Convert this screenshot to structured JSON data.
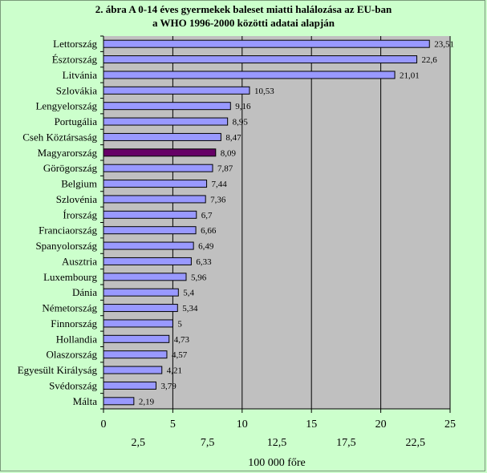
{
  "chart_data": {
    "type": "bar",
    "orientation": "horizontal",
    "title_line1": "2. ábra  A 0-14 éves gyermekek baleset miatti halálozása  az EU-ban",
    "title_line2": "a WHO 1996-2000 közötti adatai alapján",
    "xlabel": "100 000 főre",
    "categories": [
      "Lettország",
      "Észtország",
      "Litvánia",
      "Szlovákia",
      "Lengyelország",
      "Portugália",
      "Cseh Köztársaság",
      "Magyarország",
      "Görögország",
      "Belgium",
      "Szlovénia",
      "Írország",
      "Franciaország",
      "Spanyolország",
      "Ausztria",
      "Luxembourg",
      "Dánia",
      "Németország",
      "Finnország",
      "Hollandia",
      "Olaszország",
      "Egyesült Királyság",
      "Svédország",
      "Málta"
    ],
    "values": [
      23.51,
      22.6,
      21.01,
      10.53,
      9.16,
      8.95,
      8.47,
      8.09,
      7.87,
      7.44,
      7.36,
      6.7,
      6.66,
      6.49,
      6.33,
      5.96,
      5.4,
      5.34,
      5,
      4.73,
      4.57,
      4.21,
      3.79,
      2.19
    ],
    "value_labels": [
      "23,51",
      "22,6",
      "21,01",
      "10,53",
      "9,16",
      "8,95",
      "8,47",
      "8,09",
      "7,87",
      "7,44",
      "7,36",
      "6,7",
      "6,66",
      "6,49",
      "6,33",
      "5,96",
      "5,4",
      "5,34",
      "5",
      "4,73",
      "4,57",
      "4,21",
      "3,79",
      "2,19"
    ],
    "highlight": "Magyarország",
    "xlim": [
      0,
      25
    ],
    "major_ticks": [
      0,
      5,
      10,
      15,
      20,
      25
    ],
    "minor_ticks": [
      "2,5",
      "7,5",
      "12,5",
      "17,5",
      "22,5"
    ],
    "minor_tick_values": [
      2.5,
      7.5,
      12.5,
      17.5,
      22.5
    ],
    "grid": true,
    "colors": {
      "background": "#ccffcc",
      "plot_area": "#c0c0c0",
      "bar": "#9999ff",
      "highlight_bar": "#660066",
      "bar_border": "#000000"
    }
  }
}
